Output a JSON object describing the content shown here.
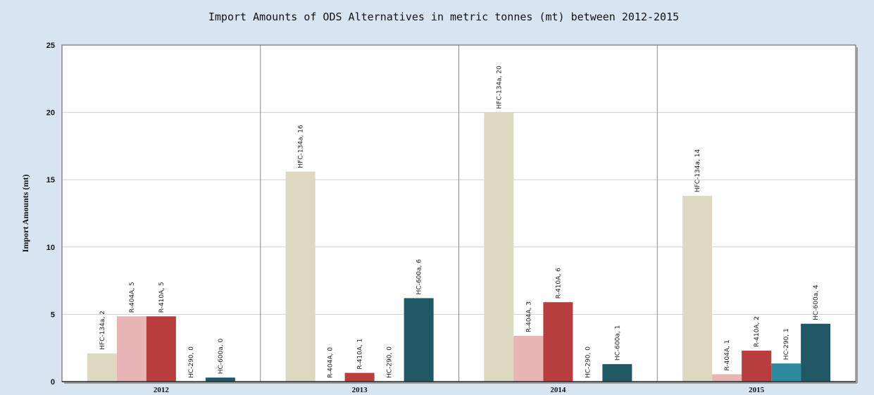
{
  "chart_data": {
    "type": "bar",
    "title": "Import Amounts of ODS Alternatives in metric tonnes (mt) between 2012-2015",
    "ylabel": "Import Amounts (mt)",
    "xlabel": "",
    "ylim": [
      0,
      25
    ],
    "yticks": [
      "0",
      "5",
      "10",
      "15",
      "20",
      "25"
    ],
    "grid": true,
    "legend": "none",
    "categories": [
      "2012",
      "2013",
      "2014",
      "2015"
    ],
    "series": [
      {
        "name": "HFC-134a",
        "color": "#ddd8c0",
        "values": [
          2.1,
          15.6,
          20.0,
          13.8
        ],
        "labels": [
          "HFC-134a, 2",
          "HFC-134a, 16",
          "HFC-134a, 20",
          "HFC-134a, 14"
        ]
      },
      {
        "name": "R-404A",
        "color": "#e8b4b4",
        "values": [
          4.85,
          0,
          3.4,
          0.55
        ],
        "labels": [
          "R-404A, 5",
          "R-404A, 0",
          "R-404A, 3",
          "R-404A, 1"
        ]
      },
      {
        "name": "R-410A",
        "color": "#b83e3e",
        "values": [
          4.85,
          0.65,
          5.9,
          2.3
        ],
        "labels": [
          "R-410A, 5",
          "R-410A, 1",
          "R-410A, 6",
          "R-410A, 2"
        ]
      },
      {
        "name": "HC-290",
        "color": "#2f8aa0",
        "values": [
          0,
          0,
          0,
          1.35
        ],
        "labels": [
          "HC-290, 0",
          "HC-290, 0",
          "HC-290, 0",
          "HC-290, 1"
        ]
      },
      {
        "name": "HC-600a",
        "color": "#215866",
        "values": [
          0.3,
          6.2,
          1.3,
          4.3
        ],
        "labels": [
          "HC-600a, 0",
          "HC-600a, 6",
          "HC-600a, 1",
          "HC-600a, 4"
        ]
      }
    ]
  }
}
